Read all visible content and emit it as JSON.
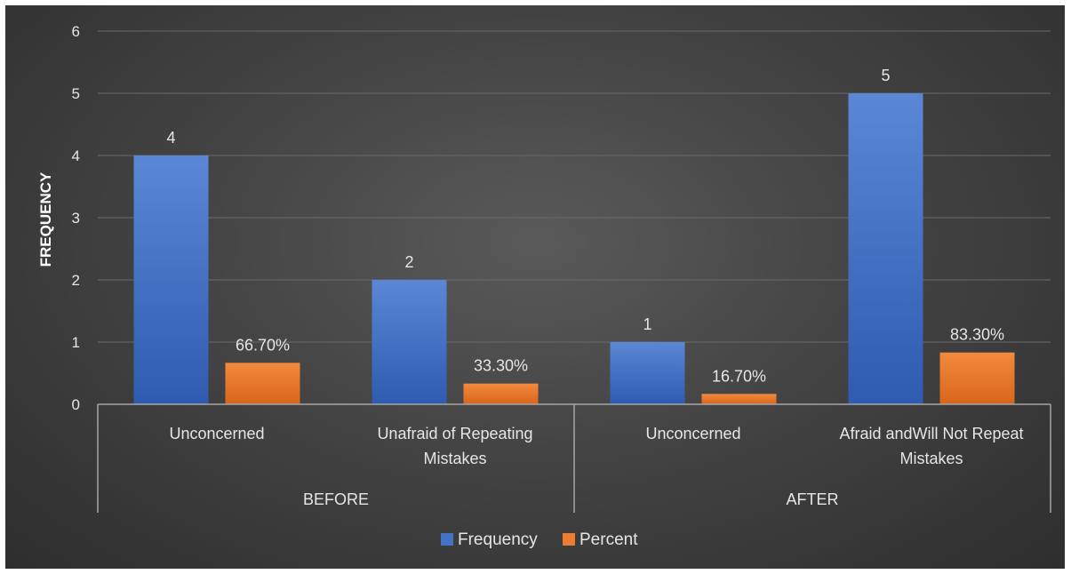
{
  "chart_data": {
    "type": "bar",
    "ylabel": "FREQUENCY",
    "ylim": [
      0,
      6
    ],
    "yticks": [
      "0",
      "1",
      "2",
      "3",
      "4",
      "5",
      "6"
    ],
    "grid": true,
    "legend_position": "bottom",
    "groups": [
      {
        "label": "BEFORE",
        "categories": [
          "Unconcerned",
          "Unafraid of Repeating Mistakes"
        ]
      },
      {
        "label": "AFTER",
        "categories": [
          "Unconcerned",
          "Afraid andWill Not Repeat Mistakes"
        ]
      }
    ],
    "categories": [
      "Unconcerned",
      "Unafraid of Repeating Mistakes",
      "Unconcerned",
      "Afraid andWill Not Repeat Mistakes"
    ],
    "series": [
      {
        "name": "Frequency",
        "color": "#4472c4",
        "values": [
          4,
          2,
          1,
          5
        ],
        "labels": [
          "4",
          "2",
          "1",
          "5"
        ]
      },
      {
        "name": "Percent",
        "color": "#ed7d31",
        "values": [
          0.667,
          0.333,
          0.167,
          0.833
        ],
        "labels": [
          "66.70%",
          "33.30%",
          "16.70%",
          "83.30%"
        ]
      }
    ]
  }
}
